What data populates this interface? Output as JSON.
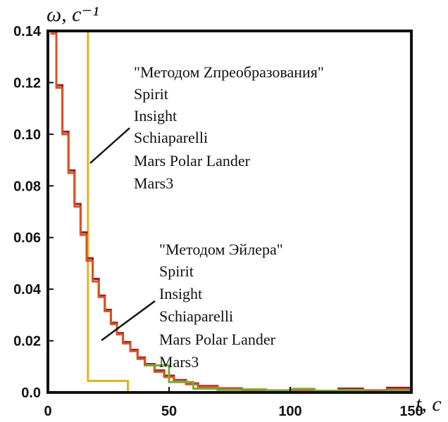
{
  "chart_data": {
    "type": "line",
    "xlabel": "t, c",
    "ylabel": "ω, c⁻¹",
    "xlim": [
      0,
      150
    ],
    "ylim": [
      0,
      0.14
    ],
    "x_ticks": [
      "0",
      "50",
      "100",
      "150"
    ],
    "y_ticks": [
      "0.0",
      "0.02",
      "0.04",
      "0.06",
      "0.08",
      "0.10",
      "0.12",
      "0.14"
    ],
    "grid": false,
    "series": [
      {
        "color": "#E8B020",
        "style": "step",
        "x": [
          0,
          16.5,
          16.5,
          33,
          33,
          150
        ],
        "y": [
          0.14,
          0.14,
          0.0045,
          0.0045,
          0,
          0
        ]
      },
      {
        "color": "#8B2232",
        "style": "step",
        "x": [
          1,
          3.5,
          6,
          8.5,
          11,
          13.5,
          16,
          18.5,
          21,
          23.5,
          26,
          28.5,
          31,
          34,
          37,
          40,
          44,
          48,
          52,
          57,
          62,
          70,
          80,
          90,
          100,
          110,
          120,
          130,
          140,
          150
        ],
        "y": [
          0.14,
          0.119,
          0.101,
          0.086,
          0.073,
          0.062,
          0.052,
          0.044,
          0.0375,
          0.032,
          0.027,
          0.023,
          0.0195,
          0.0165,
          0.0135,
          0.011,
          0.0085,
          0.0065,
          0.0048,
          0.0035,
          0.0025,
          0.0016,
          0.001,
          0.0008,
          0.0012,
          0.0006,
          0.0015,
          0.0008,
          0.0018,
          0.0006
        ]
      },
      {
        "color": "#D9531E",
        "style": "step",
        "x": [
          1,
          3.5,
          6,
          8.5,
          11,
          13.5,
          16,
          18.5,
          21,
          23.5,
          26,
          28.5,
          31,
          34,
          37,
          40,
          44,
          48,
          52,
          57,
          62,
          70,
          80,
          90,
          100,
          110,
          120,
          130,
          140,
          150
        ],
        "y": [
          0.139,
          0.118,
          0.1,
          0.085,
          0.072,
          0.061,
          0.051,
          0.043,
          0.037,
          0.0315,
          0.0265,
          0.0225,
          0.019,
          0.016,
          0.013,
          0.0105,
          0.008,
          0.006,
          0.0045,
          0.0032,
          0.0022,
          0.0014,
          0.0009,
          0.0006,
          0.0009,
          0.0005,
          0.001,
          0.0006,
          0.0012,
          0.0005
        ]
      },
      {
        "color": "#77AC30",
        "style": "step",
        "x": [
          40,
          50,
          60,
          70,
          80,
          90,
          100,
          110,
          120,
          130,
          140,
          150
        ],
        "y": [
          0.0105,
          0.004,
          0.0015,
          0.001,
          0.0012,
          0.0007,
          0.0014,
          0.0006,
          0.0009,
          0.0004,
          0.0008,
          0.0005
        ]
      }
    ],
    "annotations": [
      {
        "lines": [
          "\"Методом Zпреобразования\"",
          "Spirit",
          "Insight",
          "Schiaparelli",
          "Mars Polar Lander",
          "Mars3"
        ],
        "pointer_to": [
          17,
          0.088
        ]
      },
      {
        "lines": [
          "\"Методом Эйлера\"",
          "Spirit",
          "Insight",
          "Schiaparelli",
          "Mars Polar Lander",
          "Mars3"
        ],
        "pointer_to": [
          22,
          0.021
        ]
      }
    ]
  }
}
